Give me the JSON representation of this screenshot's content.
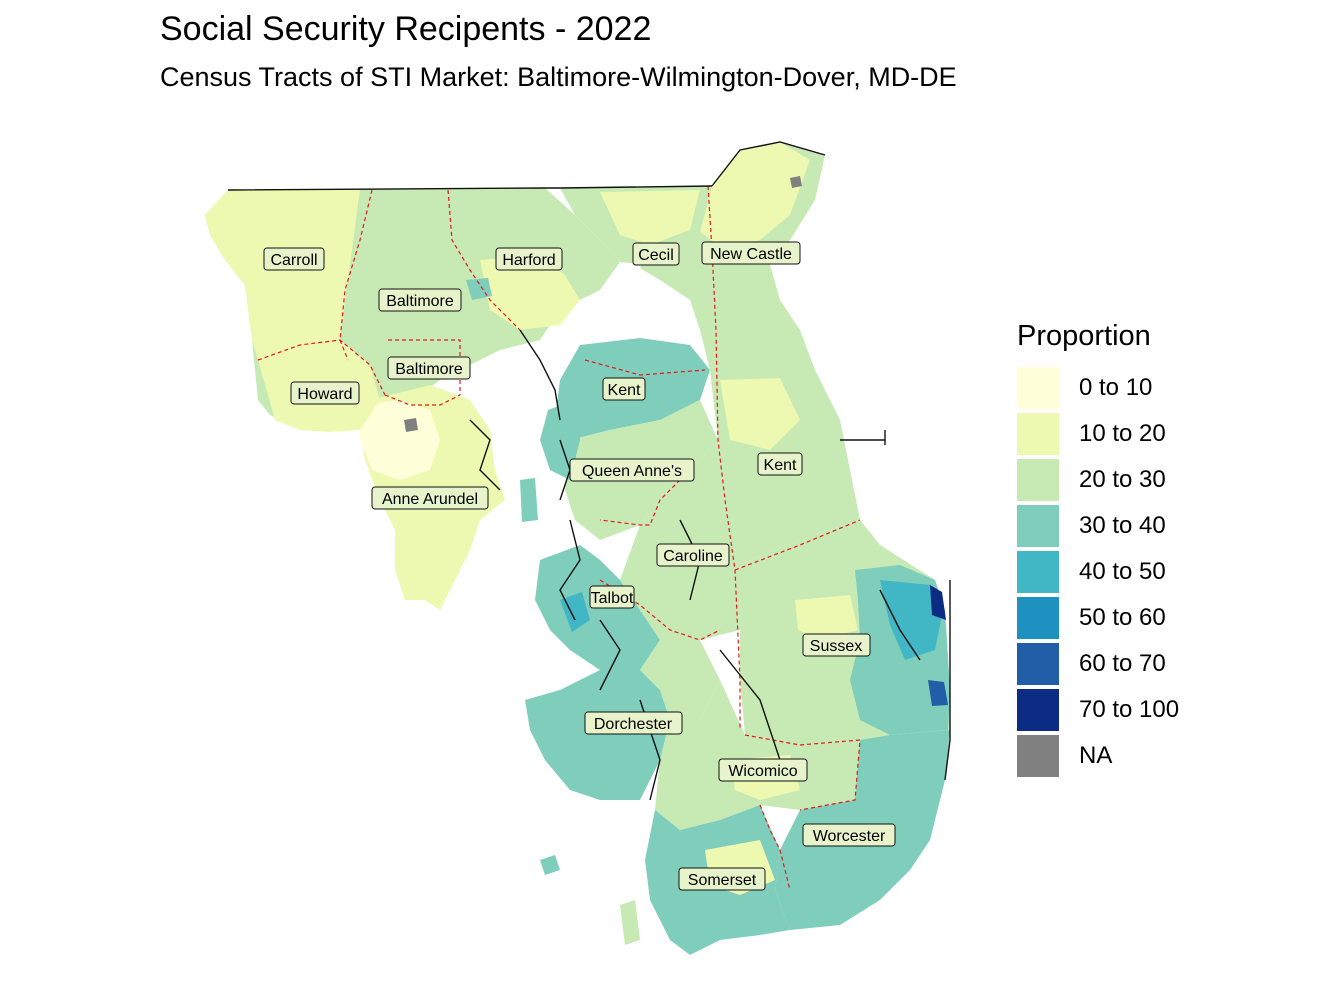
{
  "header": {
    "title": "Social Security Recipents - 2022",
    "subtitle": "Census Tracts of STI Market: Baltimore-Wilmington-Dover, MD-DE"
  },
  "legend": {
    "title": "Proportion",
    "items": [
      {
        "label": "0 to 10",
        "color": "#ffffd9"
      },
      {
        "label": "10 to 20",
        "color": "#edf8b1"
      },
      {
        "label": "20 to 30",
        "color": "#c7e9b4"
      },
      {
        "label": "30 to 40",
        "color": "#7fcdbb"
      },
      {
        "label": "40 to 50",
        "color": "#41b6c4"
      },
      {
        "label": "50 to 60",
        "color": "#1d91c0"
      },
      {
        "label": "60 to 70",
        "color": "#225ea8"
      },
      {
        "label": "70 to 100",
        "color": "#0c2c84"
      },
      {
        "label": "NA",
        "color": "#808080"
      }
    ]
  },
  "map": {
    "counties": [
      {
        "name": "Carroll"
      },
      {
        "name": "Harford"
      },
      {
        "name": "Cecil"
      },
      {
        "name": "New Castle"
      },
      {
        "name": "Baltimore"
      },
      {
        "name": "Baltimore"
      },
      {
        "name": "Howard"
      },
      {
        "name": "Kent"
      },
      {
        "name": "Queen Anne's"
      },
      {
        "name": "Kent"
      },
      {
        "name": "Anne Arundel"
      },
      {
        "name": "Caroline"
      },
      {
        "name": "Talbot"
      },
      {
        "name": "Sussex"
      },
      {
        "name": "Dorchester"
      },
      {
        "name": "Wicomico"
      },
      {
        "name": "Worcester"
      },
      {
        "name": "Somerset"
      }
    ]
  }
}
